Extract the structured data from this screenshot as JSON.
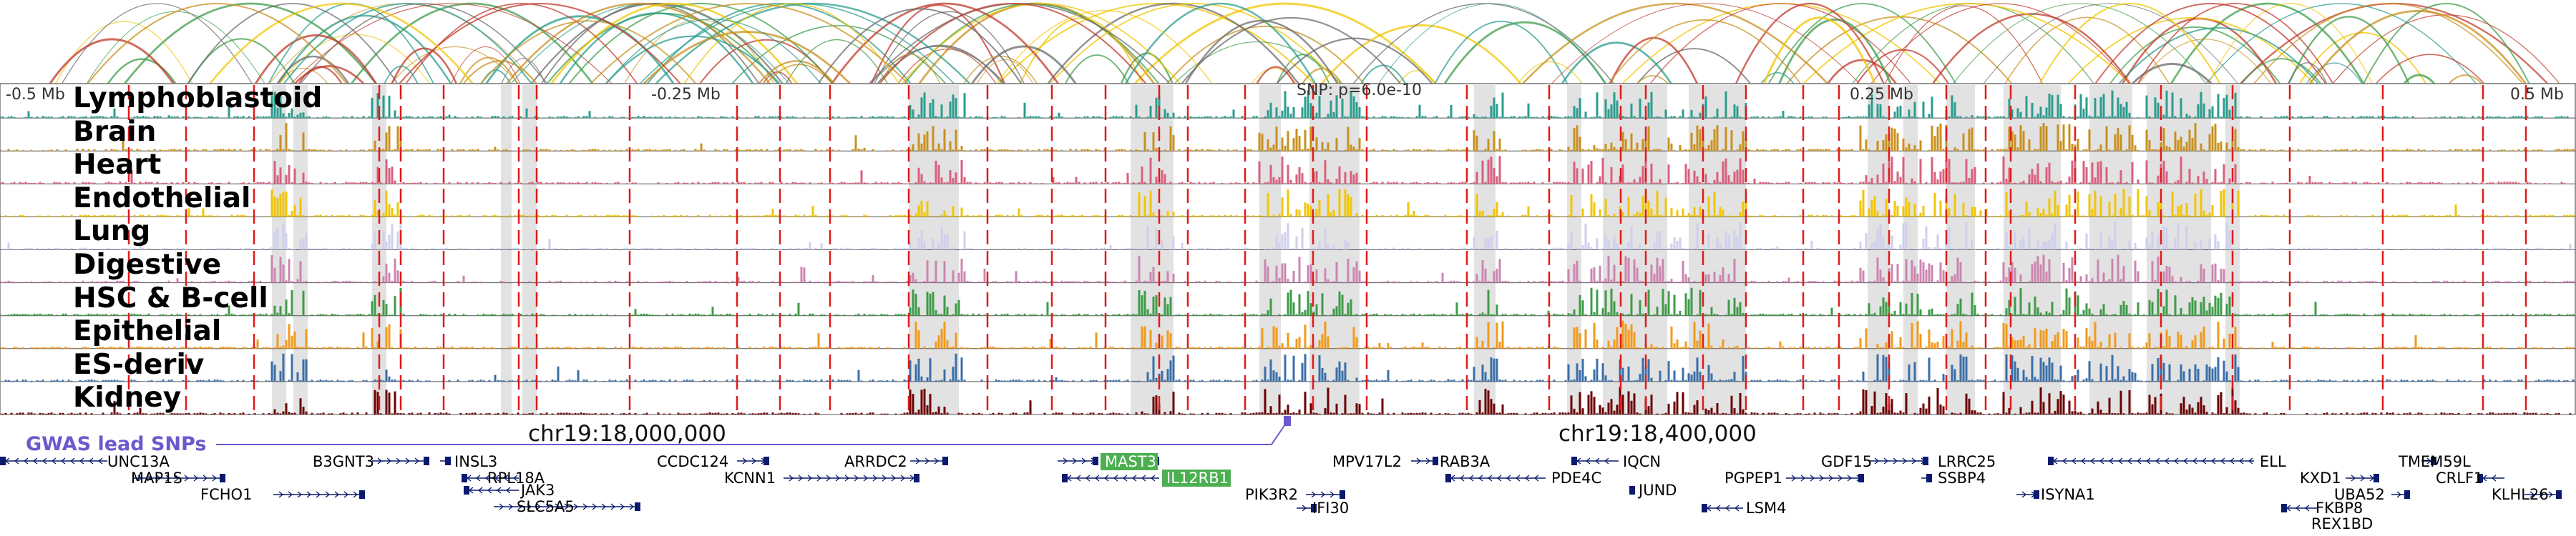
{
  "figure": {
    "axis_labels": [
      "-0.5 Mb",
      "-0.25 Mb",
      "0.25 Mb",
      "0.5 Mb"
    ],
    "snp_label": "SNP: p=6.0e-10",
    "coord_labels": [
      "chr19:18,000,000",
      "chr19:18,400,000"
    ],
    "gwas_label": "GWAS lead SNPs",
    "gwas_color": "#6a5acd",
    "gene_color": "#0a1a6e",
    "highlight_color": "#4caf50"
  },
  "tracks": [
    {
      "name": "Lymphoblastoid",
      "color": "#2a9d8f"
    },
    {
      "name": "Brain",
      "color": "#c8901e"
    },
    {
      "name": "Heart",
      "color": "#d9607e"
    },
    {
      "name": "Endothelial",
      "color": "#f2c500"
    },
    {
      "name": "Lung",
      "color": "#cfcfee"
    },
    {
      "name": "Digestive",
      "color": "#cc85b0"
    },
    {
      "name": "HSC & B-cell",
      "color": "#3e9c48"
    },
    {
      "name": "Epithelial",
      "color": "#f29a1a"
    },
    {
      "name": "ES-deriv",
      "color": "#3a6fa8"
    },
    {
      "name": "Kidney",
      "color": "#6b0000"
    }
  ],
  "genes": [
    {
      "name": "UNC13A"
    },
    {
      "name": "MAP1S"
    },
    {
      "name": "FCHO1"
    },
    {
      "name": "B3GNT3"
    },
    {
      "name": "INSL3"
    },
    {
      "name": "RPL18A"
    },
    {
      "name": "JAK3"
    },
    {
      "name": "SLC5A5"
    },
    {
      "name": "CCDC124"
    },
    {
      "name": "KCNN1"
    },
    {
      "name": "ARRDC2"
    },
    {
      "name": "MAST3",
      "highlight": true
    },
    {
      "name": "IL12RB1",
      "highlight": true
    },
    {
      "name": "PIK3R2"
    },
    {
      "name": "IFI30"
    },
    {
      "name": "MPV17L2"
    },
    {
      "name": "RAB3A"
    },
    {
      "name": "PDE4C"
    },
    {
      "name": "IQCN"
    },
    {
      "name": "JUND"
    },
    {
      "name": "LSM4"
    },
    {
      "name": "PGPEP1"
    },
    {
      "name": "GDF15"
    },
    {
      "name": "LRRC25"
    },
    {
      "name": "SSBP4"
    },
    {
      "name": "ISYNA1"
    },
    {
      "name": "ELL"
    },
    {
      "name": "KXD1"
    },
    {
      "name": "UBA52"
    },
    {
      "name": "FKBP8"
    },
    {
      "name": "REX1BD"
    },
    {
      "name": "TMEM59L"
    },
    {
      "name": "CRLF1"
    },
    {
      "name": "KLHL26"
    }
  ]
}
